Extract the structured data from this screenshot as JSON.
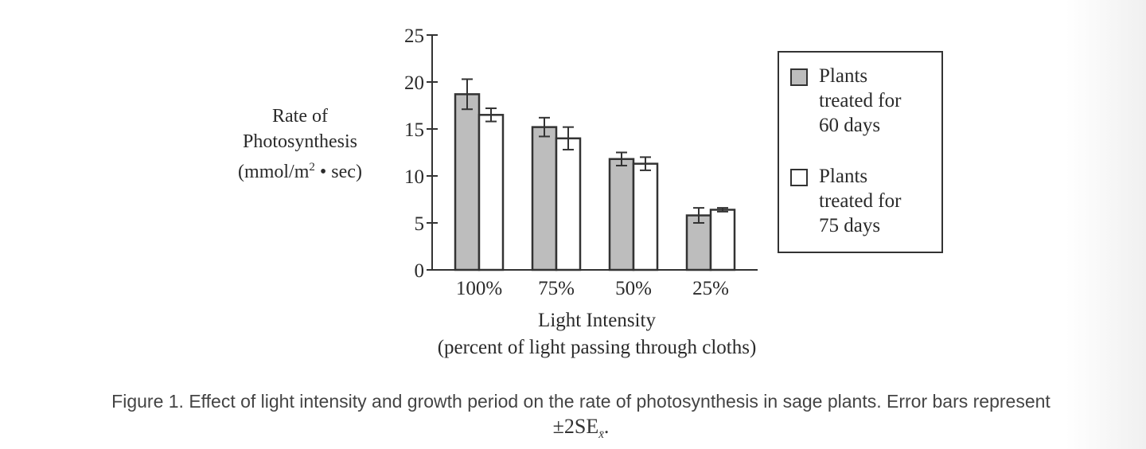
{
  "chart_data": {
    "type": "bar",
    "title": "",
    "xlabel": "Light Intensity (percent of light passing through cloths)",
    "ylabel": "Rate of Photosynthesis (mmol/m2 • sec)",
    "categories": [
      "100%",
      "75%",
      "50%",
      "25%"
    ],
    "series": [
      {
        "name": "Plants treated for 60 days",
        "color": "#bdbdbd",
        "values": [
          18.7,
          15.2,
          11.8,
          5.8
        ],
        "error": [
          1.6,
          1.0,
          0.7,
          0.8
        ]
      },
      {
        "name": "Plants treated for 75 days",
        "color": "#ffffff",
        "values": [
          16.5,
          14.0,
          11.3,
          6.4
        ],
        "error": [
          0.7,
          1.2,
          0.7,
          0.2
        ]
      }
    ],
    "ylim": [
      0,
      25
    ],
    "yticks": [
      0,
      5,
      10,
      15,
      20,
      25
    ],
    "grid": false,
    "legend_position": "right",
    "error_bars": "±2SE"
  },
  "axis": {
    "y_label_lines": [
      "Rate of",
      "Photosynthesis",
      "(mmol/m",
      "2",
      " • sec)"
    ],
    "x_label_line1": "Light Intensity",
    "x_label_line2": "(percent of light passing through cloths)",
    "y_ticks": [
      "25",
      "20",
      "15",
      "10",
      "5",
      "0"
    ],
    "x_ticks": [
      "100%",
      "75%",
      "50%",
      "25%"
    ]
  },
  "legend": {
    "items": [
      {
        "line1": "Plants",
        "line2": "treated for",
        "line3": "60 days"
      },
      {
        "line1": "Plants",
        "line2": "treated for",
        "line3": "75 days"
      }
    ]
  },
  "caption": {
    "text": "Figure 1. Effect of light intensity and growth period on the rate of photosynthesis in sage plants. Error bars represent",
    "eq_main": "±2SE",
    "eq_sub": "x̄",
    "eq_end": "."
  }
}
